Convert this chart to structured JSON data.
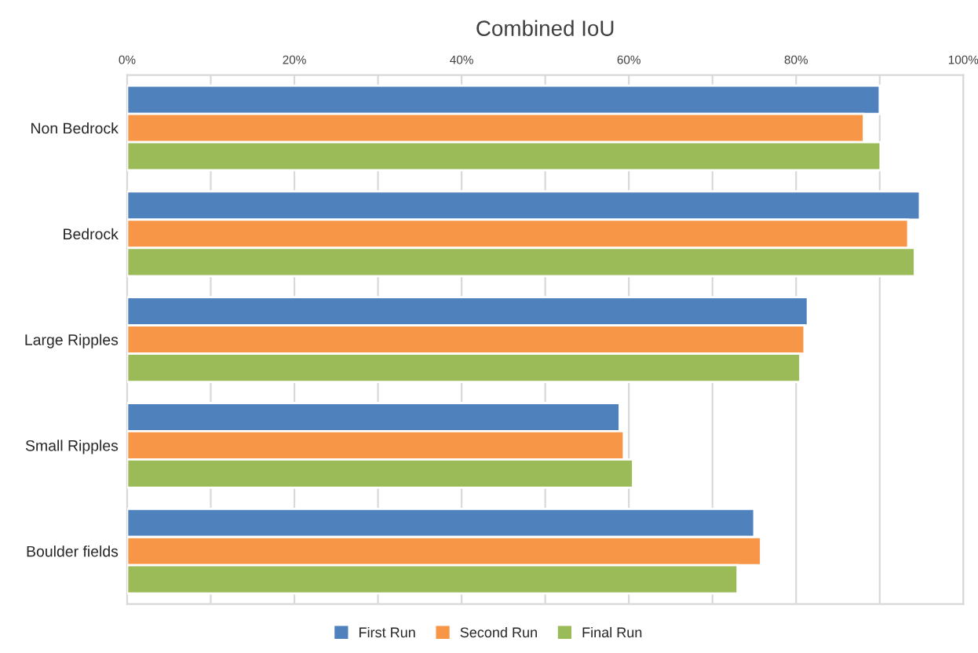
{
  "chart_data": {
    "type": "bar",
    "orientation": "horizontal",
    "title": "Combined IoU",
    "categories": [
      "Non Bedrock",
      "Bedrock",
      "Large Ripples",
      "Small Ripples",
      "Boulder fields"
    ],
    "series": [
      {
        "name": "First Run",
        "color": "#4f81bd",
        "values": [
          90.0,
          94.8,
          81.4,
          58.9,
          75.0
        ]
      },
      {
        "name": "Second Run",
        "color": "#f79646",
        "values": [
          88.1,
          93.4,
          81.0,
          59.4,
          75.8
        ]
      },
      {
        "name": "Final Run",
        "color": "#9bbb59",
        "values": [
          90.1,
          94.2,
          80.5,
          60.5,
          73.0
        ]
      }
    ],
    "xlim": [
      0,
      100
    ],
    "xticks": [
      {
        "value": 0,
        "label": "0%"
      },
      {
        "value": 10,
        "label": null
      },
      {
        "value": 20,
        "label": "20%"
      },
      {
        "value": 30,
        "label": null
      },
      {
        "value": 40,
        "label": "40%"
      },
      {
        "value": 50,
        "label": null
      },
      {
        "value": 60,
        "label": "60%"
      },
      {
        "value": 70,
        "label": null
      },
      {
        "value": 80,
        "label": "80%"
      },
      {
        "value": 90,
        "label": null
      },
      {
        "value": 100,
        "label": "100%"
      }
    ],
    "grid": "x",
    "legend": "bottom"
  }
}
